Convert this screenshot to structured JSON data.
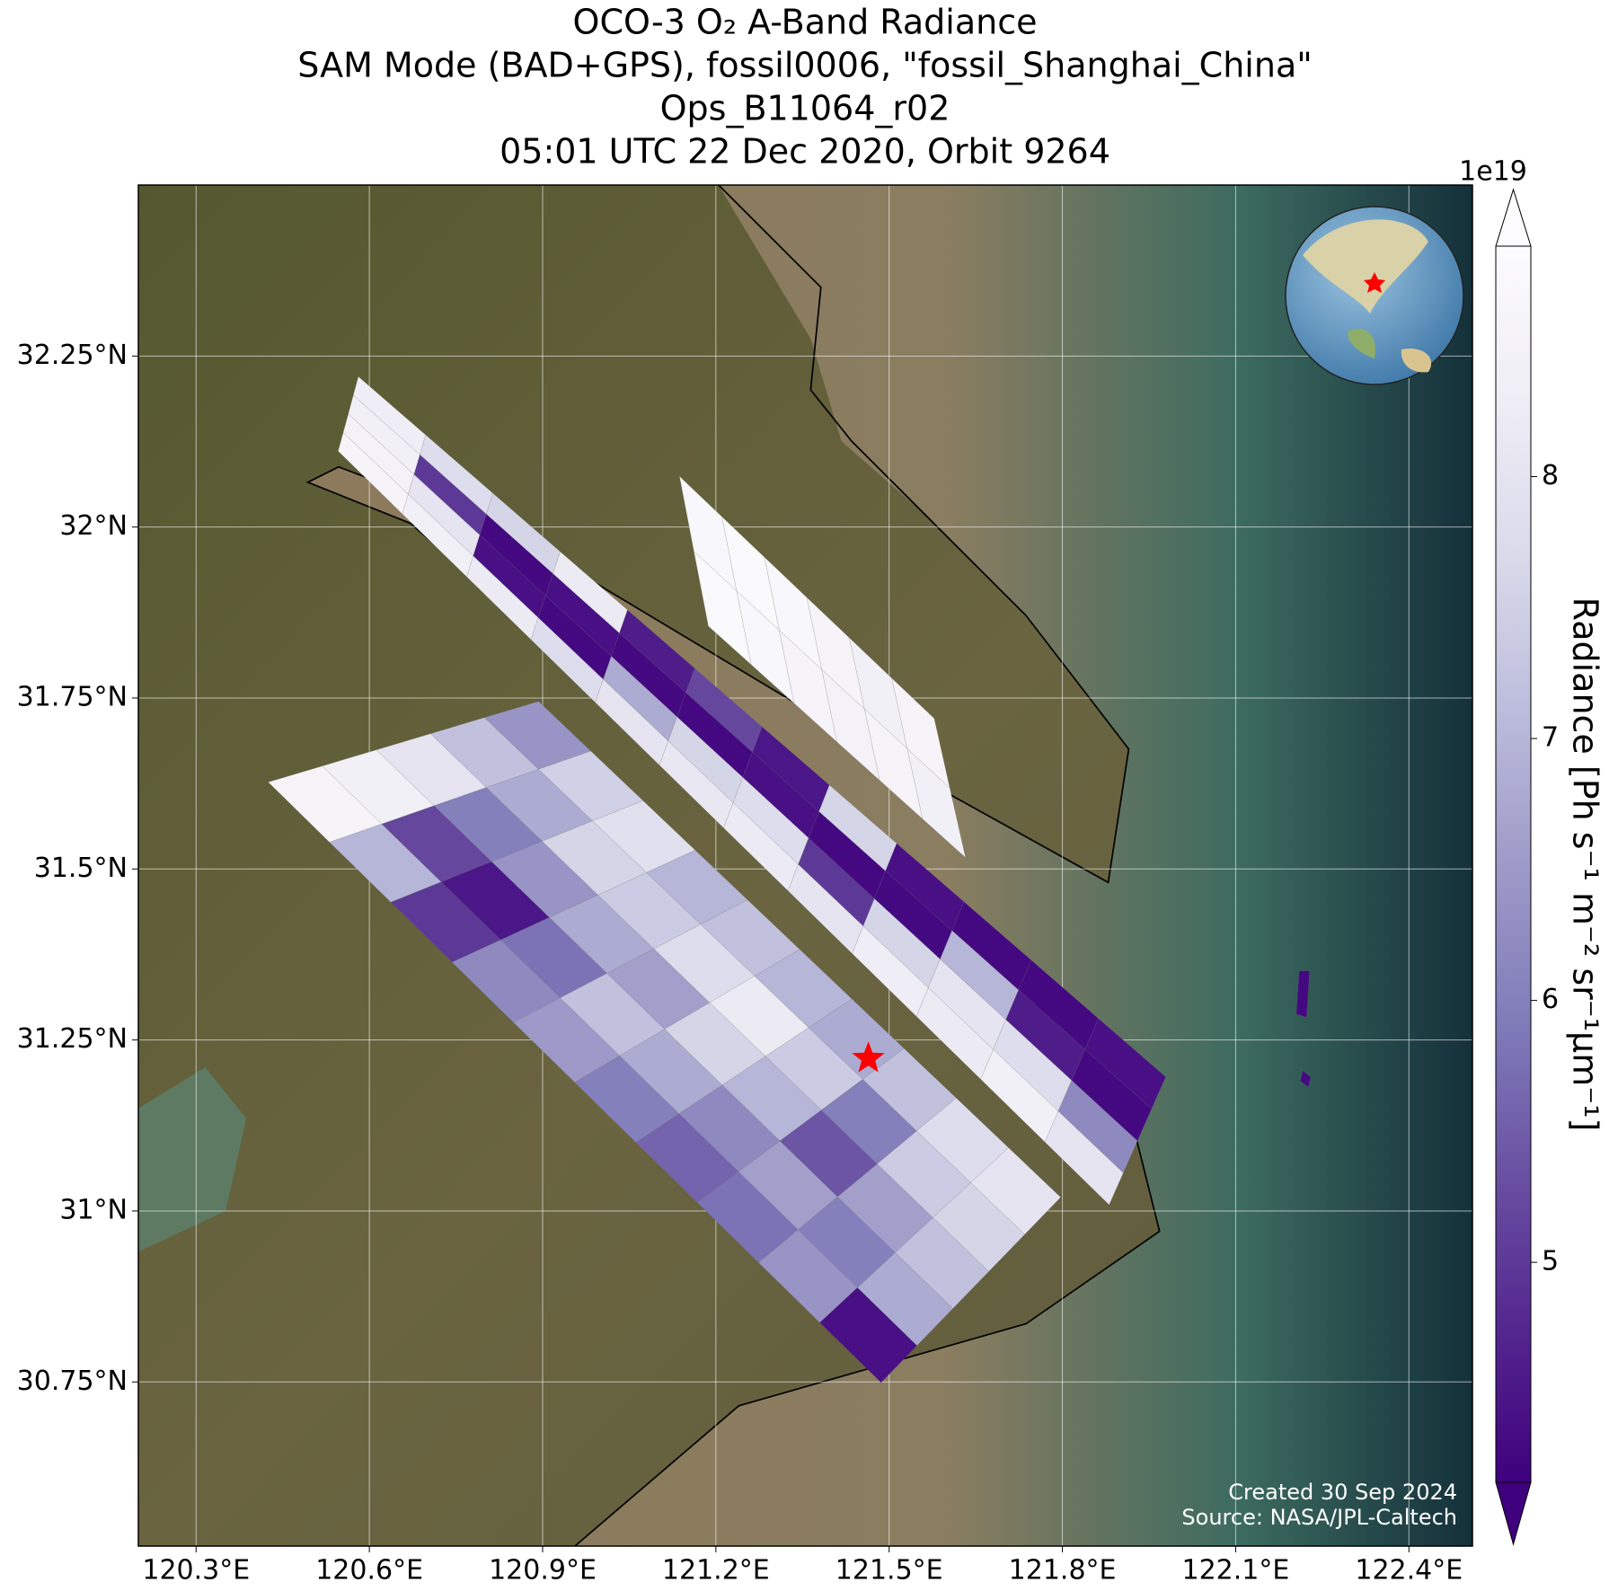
{
  "chart_data": {
    "type": "swath-map",
    "title": [
      "OCO-3 O₂ A-Band Radiance",
      "SAM Mode (BAD+GPS), fossil0006, \"fossil_Shanghai_China\"",
      "Ops_B11064_r02",
      "05:01 UTC 22 Dec 2020, Orbit 9264"
    ],
    "xlim": [
      120.2,
      122.51
    ],
    "ylim": [
      30.51,
      32.5
    ],
    "xticks": [
      {
        "value": 120.3,
        "label": "120.3°E"
      },
      {
        "value": 120.6,
        "label": "120.6°E"
      },
      {
        "value": 120.9,
        "label": "120.9°E"
      },
      {
        "value": 121.2,
        "label": "121.2°E"
      },
      {
        "value": 121.5,
        "label": "121.5°E"
      },
      {
        "value": 121.8,
        "label": "121.8°E"
      },
      {
        "value": 122.1,
        "label": "122.1°E"
      },
      {
        "value": 122.4,
        "label": "122.4°E"
      }
    ],
    "yticks": [
      {
        "value": 30.75,
        "label": "30.75°N"
      },
      {
        "value": 31,
        "label": "31°N"
      },
      {
        "value": 31.25,
        "label": "31.25°N"
      },
      {
        "value": 31.5,
        "label": "31.5°N"
      },
      {
        "value": 31.75,
        "label": "31.75°N"
      },
      {
        "value": 32,
        "label": "32°N"
      },
      {
        "value": 32.25,
        "label": "32.25°N"
      }
    ],
    "grid": true,
    "colorbar": {
      "label": "Radiance [Ph s⁻¹ m⁻² sr⁻¹μm⁻¹]",
      "offset_label": "1e19",
      "clim": [
        4.16,
        8.88
      ],
      "ticks": [
        5,
        6,
        7,
        8
      ],
      "extend": "both",
      "colormap": [
        "#3f007d",
        "#54278f",
        "#6a51a3",
        "#807dba",
        "#9e9ac8",
        "#bcbddc",
        "#dadaeb",
        "#efedf5",
        "#fcfbfd"
      ]
    },
    "swaths": [
      {
        "corners": [
          [
            120.425,
            31.627
          ],
          [
            120.893,
            31.745
          ],
          [
            121.797,
            31.02
          ],
          [
            121.486,
            30.749
          ]
        ],
        "values": [
          [
            8.6,
            8.4,
            8.0,
            7.2,
            6.4
          ],
          [
            7.0,
            5.2,
            6.0,
            6.8,
            7.5
          ],
          [
            5.0,
            4.5,
            6.4,
            7.6,
            7.9
          ],
          [
            6.2,
            5.8,
            6.8,
            7.4,
            7.0
          ],
          [
            6.5,
            7.2,
            6.6,
            7.8,
            7.2
          ],
          [
            6.0,
            6.8,
            7.6,
            8.2,
            7.0
          ],
          [
            5.6,
            6.2,
            7.0,
            7.4,
            6.8
          ],
          [
            5.8,
            6.6,
            5.4,
            6.0,
            7.2
          ],
          [
            6.4,
            6.0,
            6.6,
            7.4,
            7.8
          ],
          [
            4.4,
            6.8,
            7.2,
            7.6,
            8.0
          ]
        ]
      },
      {
        "corners": [
          [
            120.546,
            32.111
          ],
          [
            120.581,
            32.22
          ],
          [
            121.979,
            31.196
          ],
          [
            121.881,
            31.009
          ]
        ],
        "values": [
          [
            8.6,
            8.5,
            8.4,
            8.3
          ],
          [
            8.4,
            8.0,
            5.0,
            7.8
          ],
          [
            8.2,
            4.4,
            4.3,
            7.6
          ],
          [
            7.8,
            4.3,
            4.4,
            8.2
          ],
          [
            8.0,
            6.8,
            4.3,
            4.6
          ],
          [
            8.1,
            7.6,
            4.3,
            5.2
          ],
          [
            8.2,
            7.8,
            4.4,
            4.5
          ],
          [
            8.0,
            5.0,
            4.3,
            7.6
          ],
          [
            8.3,
            7.6,
            4.3,
            4.4
          ],
          [
            8.2,
            8.0,
            7.0,
            4.3
          ],
          [
            8.4,
            7.8,
            4.6,
            4.3
          ],
          [
            8.0,
            6.2,
            4.3,
            4.4
          ]
        ]
      },
      {
        "corners": [
          [
            121.187,
            31.855
          ],
          [
            121.137,
            32.074
          ],
          [
            121.578,
            31.72
          ],
          [
            121.632,
            31.517
          ]
        ],
        "values": [
          [
            8.8,
            8.7
          ],
          [
            8.7,
            8.8
          ],
          [
            8.6,
            8.7
          ],
          [
            8.5,
            8.6
          ],
          [
            8.6,
            8.4
          ],
          [
            8.4,
            8.6
          ]
        ]
      },
      {
        "corners": [
          [
            122.21,
            31.351
          ],
          [
            122.228,
            31.351
          ],
          [
            122.223,
            31.283
          ],
          [
            122.205,
            31.288
          ]
        ],
        "values": [
          [
            4.3
          ]
        ]
      },
      {
        "corners": [
          [
            122.216,
            31.205
          ],
          [
            122.23,
            31.196
          ],
          [
            122.226,
            31.181
          ],
          [
            122.212,
            31.19
          ]
        ],
        "values": [
          [
            4.3
          ]
        ]
      }
    ],
    "site": {
      "lon": 121.464,
      "lat": 31.223,
      "color": "red"
    },
    "credits": [
      "Created 30 Sep 2024",
      "Source: NASA/JPL-Caltech"
    ]
  }
}
